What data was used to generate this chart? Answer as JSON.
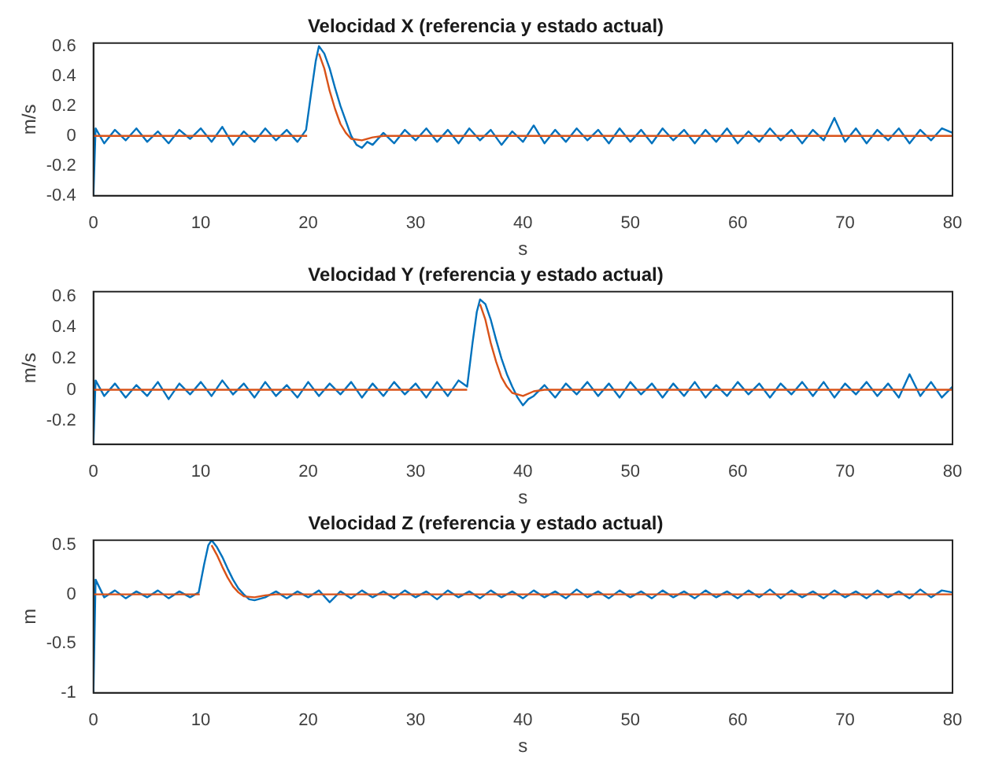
{
  "chart_data": [
    {
      "type": "line",
      "title": "Velocidad X (referencia y estado actual)",
      "xlabel": "s",
      "ylabel": "m/s",
      "xlim": [
        0,
        80
      ],
      "xticks": [
        0,
        10,
        20,
        30,
        40,
        50,
        60,
        70,
        80
      ],
      "ylim": [
        -0.4,
        0.62
      ],
      "yticks": [
        -0.4,
        -0.2,
        0,
        0.2,
        0.4,
        0.6
      ],
      "grid": false,
      "legend": false,
      "series": [
        {
          "color": "#d95319",
          "x": [
            0,
            19.9,
            20,
            20.8,
            21,
            21.5,
            22,
            22.5,
            23,
            23.5,
            24,
            25,
            26,
            27,
            80
          ],
          "values": [
            0,
            0,
            null,
            null,
            0.55,
            0.45,
            0.3,
            0.18,
            0.08,
            0.02,
            -0.02,
            -0.03,
            -0.01,
            0,
            0
          ]
        },
        {
          "color": "#0072bd",
          "x": [
            0,
            0.2,
            1,
            2,
            3,
            4,
            5,
            6,
            7,
            8,
            9,
            10,
            11,
            12,
            13,
            14,
            15,
            16,
            17,
            18,
            19,
            19.8,
            20.3,
            20.7,
            21,
            21.5,
            22,
            22.5,
            23,
            23.5,
            24,
            24.5,
            25,
            25.5,
            26,
            27,
            28,
            29,
            30,
            31,
            32,
            33,
            34,
            35,
            36,
            37,
            38,
            39,
            40,
            41,
            42,
            43,
            44,
            45,
            46,
            47,
            48,
            49,
            50,
            51,
            52,
            53,
            54,
            55,
            56,
            57,
            58,
            59,
            60,
            61,
            62,
            63,
            64,
            65,
            66,
            67,
            68,
            69,
            70,
            71,
            72,
            73,
            74,
            75,
            76,
            77,
            78,
            79,
            80
          ],
          "values": [
            -0.4,
            0.05,
            -0.05,
            0.04,
            -0.03,
            0.05,
            -0.04,
            0.03,
            -0.05,
            0.04,
            -0.02,
            0.05,
            -0.04,
            0.06,
            -0.06,
            0.03,
            -0.04,
            0.05,
            -0.03,
            0.04,
            -0.04,
            0.04,
            0.3,
            0.5,
            0.6,
            0.55,
            0.45,
            0.32,
            0.2,
            0.1,
            0,
            -0.06,
            -0.08,
            -0.04,
            -0.06,
            0.02,
            -0.05,
            0.04,
            -0.03,
            0.05,
            -0.04,
            0.04,
            -0.05,
            0.05,
            -0.03,
            0.04,
            -0.06,
            0.03,
            -0.04,
            0.07,
            -0.05,
            0.04,
            -0.04,
            0.05,
            -0.03,
            0.04,
            -0.05,
            0.05,
            -0.04,
            0.04,
            -0.05,
            0.05,
            -0.03,
            0.04,
            -0.05,
            0.04,
            -0.04,
            0.05,
            -0.05,
            0.03,
            -0.04,
            0.05,
            -0.03,
            0.04,
            -0.05,
            0.04,
            -0.03,
            0.12,
            -0.04,
            0.05,
            -0.05,
            0.04,
            -0.03,
            0.05,
            -0.05,
            0.04,
            -0.03,
            0.05,
            0.02
          ]
        }
      ]
    },
    {
      "type": "line",
      "title": "Velocidad Y (referencia y estado actual)",
      "xlabel": "s",
      "ylabel": "m/s",
      "xlim": [
        0,
        80
      ],
      "xticks": [
        0,
        10,
        20,
        30,
        40,
        50,
        60,
        70,
        80
      ],
      "ylim": [
        -0.35,
        0.63
      ],
      "yticks": [
        -0.2,
        0,
        0.2,
        0.4,
        0.6
      ],
      "grid": false,
      "legend": false,
      "series": [
        {
          "color": "#d95319",
          "x": [
            0,
            34.8,
            35,
            35.6,
            36,
            36.5,
            37,
            37.5,
            38,
            38.5,
            39,
            40,
            41,
            42,
            80
          ],
          "values": [
            0,
            0,
            null,
            null,
            0.55,
            0.45,
            0.3,
            0.18,
            0.08,
            0.02,
            -0.02,
            -0.04,
            -0.01,
            0,
            0
          ]
        },
        {
          "color": "#0072bd",
          "x": [
            0,
            0.2,
            1,
            2,
            3,
            4,
            5,
            6,
            7,
            8,
            9,
            10,
            11,
            12,
            13,
            14,
            15,
            16,
            17,
            18,
            19,
            20,
            21,
            22,
            23,
            24,
            25,
            26,
            27,
            28,
            29,
            30,
            31,
            32,
            33,
            34,
            34.8,
            35.3,
            35.7,
            36,
            36.5,
            37,
            37.5,
            38,
            38.5,
            39,
            39.5,
            40,
            40.5,
            41,
            42,
            43,
            44,
            45,
            46,
            47,
            48,
            49,
            50,
            51,
            52,
            53,
            54,
            55,
            56,
            57,
            58,
            59,
            60,
            61,
            62,
            63,
            64,
            65,
            66,
            67,
            68,
            69,
            70,
            71,
            72,
            73,
            74,
            75,
            76,
            77,
            78,
            79,
            80
          ],
          "values": [
            -0.35,
            0.06,
            -0.04,
            0.04,
            -0.05,
            0.03,
            -0.04,
            0.05,
            -0.06,
            0.04,
            -0.03,
            0.05,
            -0.04,
            0.06,
            -0.03,
            0.04,
            -0.05,
            0.05,
            -0.04,
            0.03,
            -0.05,
            0.05,
            -0.04,
            0.04,
            -0.03,
            0.05,
            -0.05,
            0.04,
            -0.04,
            0.05,
            -0.03,
            0.04,
            -0.05,
            0.05,
            -0.04,
            0.06,
            0.02,
            0.3,
            0.5,
            0.58,
            0.55,
            0.45,
            0.32,
            0.2,
            0.1,
            0.02,
            -0.05,
            -0.1,
            -0.06,
            -0.04,
            0.03,
            -0.05,
            0.04,
            -0.03,
            0.05,
            -0.04,
            0.04,
            -0.05,
            0.05,
            -0.03,
            0.04,
            -0.05,
            0.04,
            -0.04,
            0.05,
            -0.05,
            0.03,
            -0.04,
            0.05,
            -0.03,
            0.04,
            -0.05,
            0.04,
            -0.03,
            0.05,
            -0.04,
            0.05,
            -0.05,
            0.04,
            -0.03,
            0.05,
            -0.04,
            0.04,
            -0.05,
            0.1,
            -0.04,
            0.05,
            -0.05,
            0.02
          ]
        }
      ]
    },
    {
      "type": "line",
      "title": "Velocidad Z (referencia y estado actual)",
      "xlabel": "s",
      "ylabel": "m",
      "xlim": [
        0,
        80
      ],
      "xticks": [
        0,
        10,
        20,
        30,
        40,
        50,
        60,
        70,
        80
      ],
      "ylim": [
        -1,
        0.55
      ],
      "yticks": [
        -1,
        -0.5,
        0,
        0.5
      ],
      "grid": false,
      "legend": false,
      "series": [
        {
          "color": "#d95319",
          "x": [
            0,
            9.9,
            10,
            10.5,
            11,
            11.5,
            12,
            12.5,
            13,
            13.5,
            14,
            15,
            16,
            17,
            80
          ],
          "values": [
            0,
            0,
            null,
            null,
            0.5,
            0.4,
            0.28,
            0.17,
            0.08,
            0.02,
            -0.02,
            -0.03,
            -0.01,
            0,
            0
          ]
        },
        {
          "color": "#0072bd",
          "x": [
            0,
            0.2,
            1,
            2,
            3,
            4,
            5,
            6,
            7,
            8,
            9,
            9.8,
            10.3,
            10.7,
            11,
            11.5,
            12,
            12.5,
            13,
            13.5,
            14,
            14.5,
            15,
            16,
            17,
            18,
            19,
            20,
            21,
            22,
            23,
            24,
            25,
            26,
            27,
            28,
            29,
            30,
            31,
            32,
            33,
            34,
            35,
            36,
            37,
            38,
            39,
            40,
            41,
            42,
            43,
            44,
            45,
            46,
            47,
            48,
            49,
            50,
            51,
            52,
            53,
            54,
            55,
            56,
            57,
            58,
            59,
            60,
            61,
            62,
            63,
            64,
            65,
            66,
            67,
            68,
            69,
            70,
            71,
            72,
            73,
            74,
            75,
            76,
            77,
            78,
            79,
            80
          ],
          "values": [
            -1,
            0.15,
            -0.03,
            0.04,
            -0.04,
            0.03,
            -0.03,
            0.04,
            -0.04,
            0.03,
            -0.03,
            0.02,
            0.3,
            0.5,
            0.55,
            0.48,
            0.38,
            0.26,
            0.15,
            0.06,
            0,
            -0.05,
            -0.06,
            -0.03,
            0.03,
            -0.04,
            0.03,
            -0.03,
            0.04,
            -0.08,
            0.03,
            -0.04,
            0.04,
            -0.03,
            0.03,
            -0.04,
            0.04,
            -0.03,
            0.03,
            -0.05,
            0.04,
            -0.03,
            0.03,
            -0.04,
            0.04,
            -0.03,
            0.03,
            -0.04,
            0.04,
            -0.03,
            0.03,
            -0.04,
            0.05,
            -0.03,
            0.03,
            -0.04,
            0.04,
            -0.03,
            0.03,
            -0.04,
            0.04,
            -0.03,
            0.03,
            -0.04,
            0.04,
            -0.03,
            0.03,
            -0.04,
            0.04,
            -0.03,
            0.05,
            -0.04,
            0.04,
            -0.03,
            0.03,
            -0.04,
            0.04,
            -0.03,
            0.03,
            -0.04,
            0.04,
            -0.03,
            0.03,
            -0.04,
            0.05,
            -0.03,
            0.04,
            0.02
          ]
        }
      ]
    }
  ]
}
